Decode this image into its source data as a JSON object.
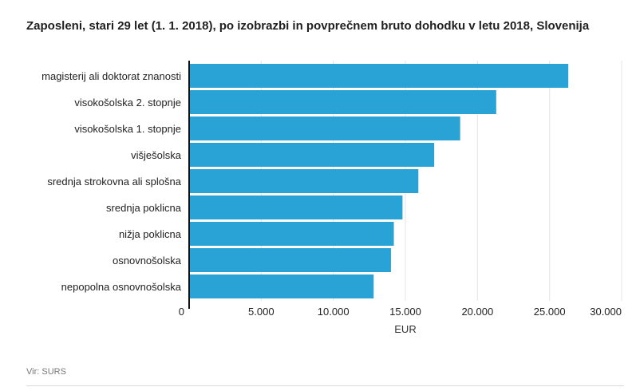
{
  "chart_data": {
    "type": "bar",
    "orientation": "horizontal",
    "title": "Zaposleni, stari 29 let (1. 1. 2018), po izobrazbi in povprečnem bruto dohodku v letu 2018, Slovenija",
    "categories": [
      "magisterij ali doktorat znanosti",
      "visokošolska 2. stopnje",
      "visokošolska 1. stopnje",
      "višješolska",
      "srednja strokovna ali splošna",
      "srednja poklicna",
      "nižja poklicna",
      "osnovnošolska",
      "nepopolna osnovnošolska"
    ],
    "values": [
      26300,
      21300,
      18800,
      17000,
      15900,
      14800,
      14200,
      14000,
      12800
    ],
    "xlabel": "EUR",
    "ylabel": "",
    "xlim": [
      0,
      30000
    ],
    "ticks": [
      0,
      5000,
      10000,
      15000,
      20000,
      25000,
      30000
    ],
    "tick_labels": [
      "0",
      "5.000",
      "10.000",
      "15.000",
      "20.000",
      "25.000",
      "30.000"
    ],
    "grid": true,
    "bar_color": "#29a3d6",
    "source": "Vir: SURS"
  }
}
